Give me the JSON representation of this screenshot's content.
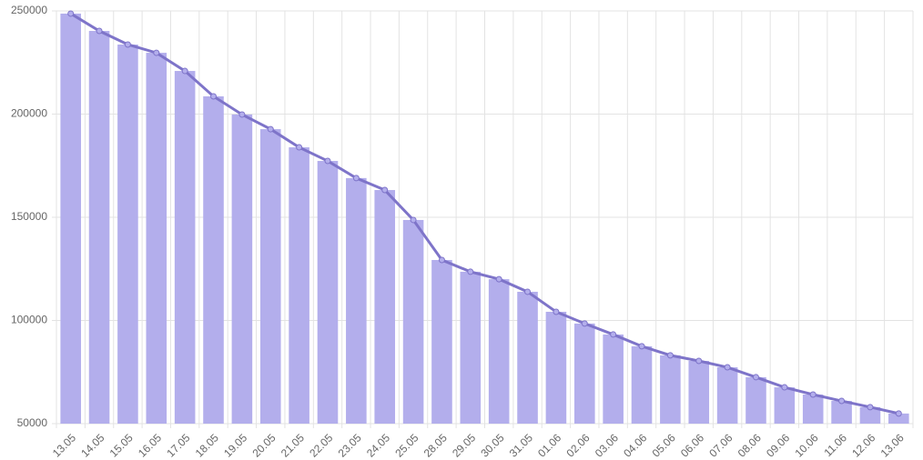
{
  "chart_data": {
    "type": "bar",
    "categories": [
      "13.05",
      "14.05",
      "15.05",
      "16.05",
      "17.05",
      "18.05",
      "19.05",
      "20.05",
      "21.05",
      "22.05",
      "23.05",
      "24.05",
      "25.05",
      "28.05",
      "29.05",
      "30.05",
      "31.05",
      "01.06",
      "02.06",
      "03.06",
      "04.06",
      "05.06",
      "06.06",
      "07.06",
      "08.06",
      "09.06",
      "10.06",
      "11.06",
      "12.06",
      "13.06"
    ],
    "values": [
      248700,
      240300,
      233700,
      229700,
      220900,
      208600,
      199800,
      192700,
      183900,
      177300,
      169000,
      163200,
      148700,
      129300,
      123600,
      120000,
      113900,
      104200,
      98500,
      93200,
      87500,
      83100,
      80400,
      77300,
      72500,
      67600,
      64100,
      61000,
      58000,
      54900
    ],
    "color": "#b3aeec",
    "line": true,
    "line_color": "#7e74c9",
    "ylim": [
      50000,
      250000
    ],
    "yticks": [
      50000,
      100000,
      150000,
      200000,
      250000
    ],
    "grid": true
  }
}
